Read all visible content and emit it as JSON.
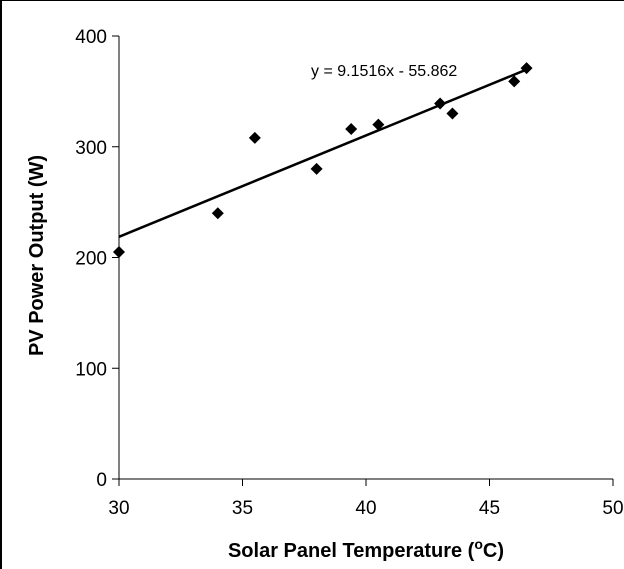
{
  "chart_data": {
    "type": "scatter",
    "title": "",
    "xlabel": "Solar Panel Temperature (",
    "xlabel_sup": "o",
    "xlabel_end": "C)",
    "ylabel": "PV Power Output (W)",
    "xlim": [
      30,
      50
    ],
    "ylim": [
      0,
      400
    ],
    "xticks": [
      30,
      35,
      40,
      45,
      50
    ],
    "yticks": [
      0,
      100,
      200,
      300,
      400
    ],
    "xtick_labels": [
      "30",
      "35",
      "40",
      "45",
      "50"
    ],
    "ytick_labels": [
      "0",
      "100",
      "200",
      "300",
      "400"
    ],
    "grid": false,
    "marker": "diamond",
    "marker_color": "#000000",
    "points": [
      {
        "x": 30.0,
        "y": 205
      },
      {
        "x": 34.0,
        "y": 240
      },
      {
        "x": 35.5,
        "y": 308
      },
      {
        "x": 38.0,
        "y": 280
      },
      {
        "x": 39.4,
        "y": 316
      },
      {
        "x": 40.5,
        "y": 320
      },
      {
        "x": 43.0,
        "y": 339
      },
      {
        "x": 43.5,
        "y": 330
      },
      {
        "x": 46.0,
        "y": 359
      },
      {
        "x": 46.5,
        "y": 371
      }
    ],
    "trendline": {
      "type": "linear",
      "slope": 9.1516,
      "intercept": -55.862,
      "x_range": [
        30,
        46.5
      ],
      "equation_label": "y = 9.1516x - 55.862"
    }
  }
}
